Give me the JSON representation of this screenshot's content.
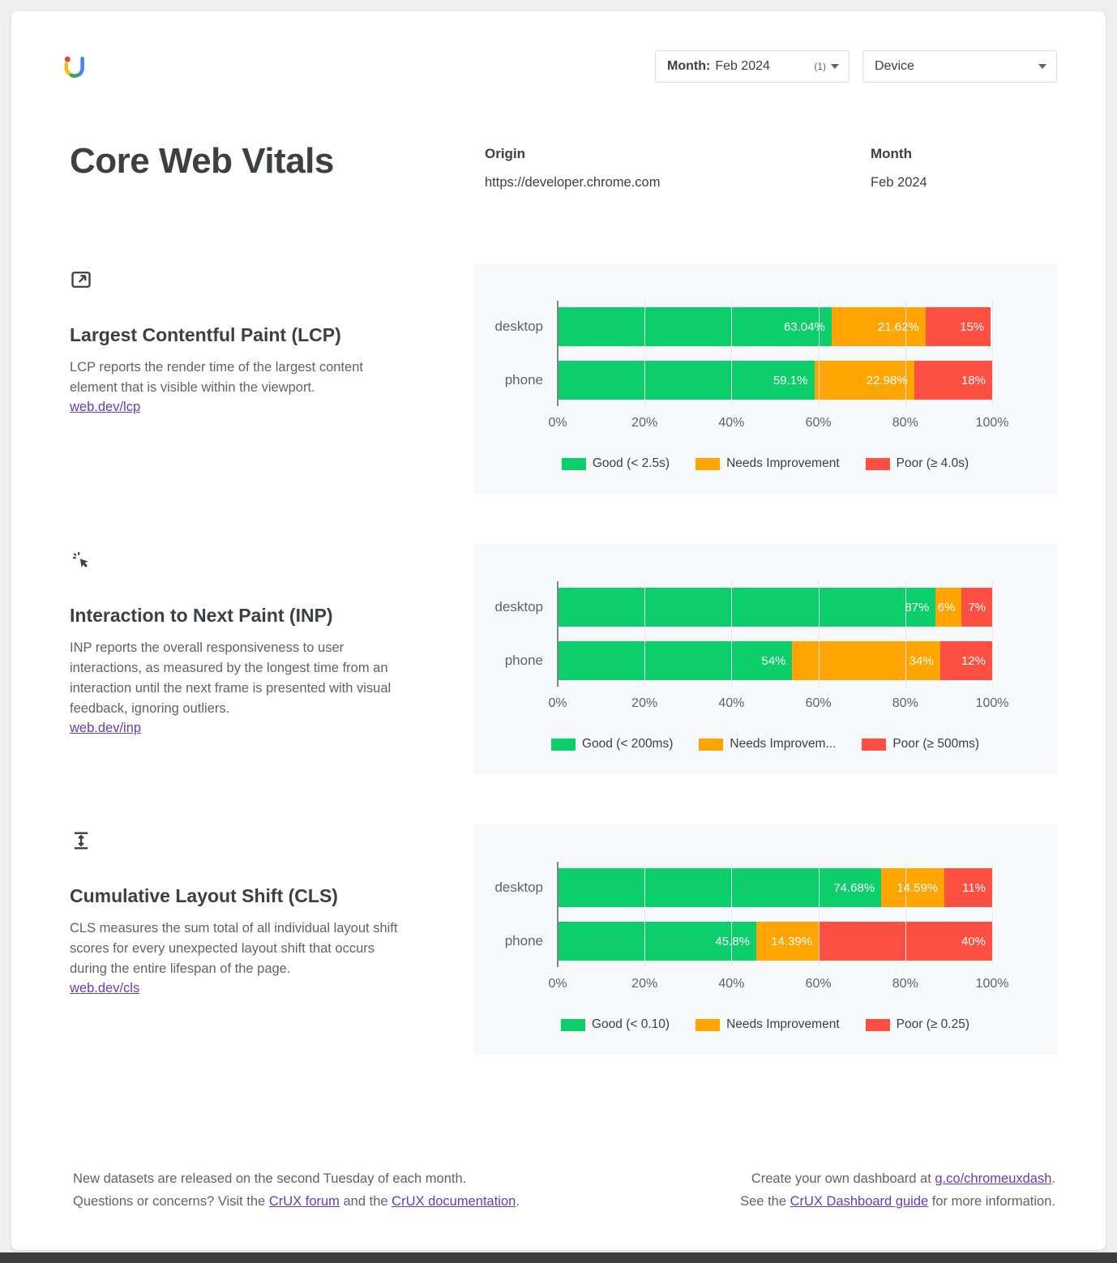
{
  "header": {
    "month_filter": {
      "label": "Month:",
      "value": "Feb 2024",
      "count": "(1)"
    },
    "device_filter": {
      "label": "Device"
    }
  },
  "title": "Core Web Vitals",
  "meta": {
    "origin_label": "Origin",
    "origin_value": "https://developer.chrome.com",
    "month_label": "Month",
    "month_value": "Feb 2024"
  },
  "colors": {
    "good": "#0cce6b",
    "ni": "#ffa400",
    "poor": "#ff4e42"
  },
  "axis_ticks": [
    "0%",
    "20%",
    "40%",
    "60%",
    "80%",
    "100%"
  ],
  "sections": [
    {
      "id": "lcp",
      "icon": "lcp-icon",
      "heading": "Largest Contentful Paint (LCP)",
      "description": "LCP reports the render time of the largest content element that is visible within the viewport.",
      "link": "web.dev/lcp",
      "legend": [
        "Good (< 2.5s)",
        "Needs Improvement",
        "Poor (≥ 4.0s)"
      ],
      "chart_data": {
        "type": "bar",
        "stacked": true,
        "orientation": "horizontal",
        "xlim": [
          0,
          100
        ],
        "categories": [
          "desktop",
          "phone"
        ],
        "series": [
          {
            "name": "Good",
            "values": [
              63.04,
              59.1
            ],
            "labels": [
              "63.04%",
              "59.1%"
            ]
          },
          {
            "name": "Needs Improvement",
            "values": [
              21.62,
              22.98
            ],
            "labels": [
              "21.62%",
              "22.98%"
            ]
          },
          {
            "name": "Poor",
            "values": [
              15,
              18
            ],
            "labels": [
              "15%",
              "18%"
            ]
          }
        ]
      }
    },
    {
      "id": "inp",
      "icon": "inp-icon",
      "heading": "Interaction to Next Paint (INP)",
      "description": "INP reports the overall responsiveness to user interactions, as measured by the longest time from an interaction until the next frame is presented with visual feedback, ignoring outliers.",
      "link": "web.dev/inp",
      "legend": [
        "Good (< 200ms)",
        "Needs Improvem...",
        "Poor (≥ 500ms)"
      ],
      "chart_data": {
        "type": "bar",
        "stacked": true,
        "orientation": "horizontal",
        "xlim": [
          0,
          100
        ],
        "categories": [
          "desktop",
          "phone"
        ],
        "series": [
          {
            "name": "Good",
            "values": [
              87,
              54
            ],
            "labels": [
              "87%",
              "54%"
            ]
          },
          {
            "name": "Needs Improvement",
            "values": [
              6,
              34
            ],
            "labels": [
              "6%",
              "34%"
            ]
          },
          {
            "name": "Poor",
            "values": [
              7,
              12
            ],
            "labels": [
              "7%",
              "12%"
            ]
          }
        ]
      }
    },
    {
      "id": "cls",
      "icon": "cls-icon",
      "heading": "Cumulative Layout Shift (CLS)",
      "description": "CLS measures the sum total of all individual layout shift scores for every unexpected layout shift that occurs during the entire lifespan of the page.",
      "link": "web.dev/cls",
      "legend": [
        "Good (< 0.10)",
        "Needs Improvement",
        "Poor (≥ 0.25)"
      ],
      "chart_data": {
        "type": "bar",
        "stacked": true,
        "orientation": "horizontal",
        "xlim": [
          0,
          100
        ],
        "categories": [
          "desktop",
          "phone"
        ],
        "series": [
          {
            "name": "Good",
            "values": [
              74.68,
              45.8
            ],
            "labels": [
              "74.68%",
              "45.8%"
            ]
          },
          {
            "name": "Needs Improvement",
            "values": [
              14.59,
              14.39
            ],
            "labels": [
              "14.59%",
              "14.39%"
            ]
          },
          {
            "name": "Poor",
            "values": [
              11,
              40
            ],
            "labels": [
              "11%",
              "40%"
            ]
          }
        ]
      }
    }
  ],
  "footer": {
    "left_line1": "New datasets are released on the second Tuesday of each month.",
    "left_line2_pre": "Questions or concerns? Visit the ",
    "left_link1": "CrUX forum",
    "left_line2_mid": " and the ",
    "left_link2": "CrUX documentation",
    "left_line2_post": ".",
    "right_line1_pre": "Create your own dashboard at ",
    "right_link1": "g.co/chromeuxdash",
    "right_line1_post": ".",
    "right_line2_pre": "See the ",
    "right_link2": "CrUX Dashboard guide",
    "right_line2_post": " for more information."
  }
}
